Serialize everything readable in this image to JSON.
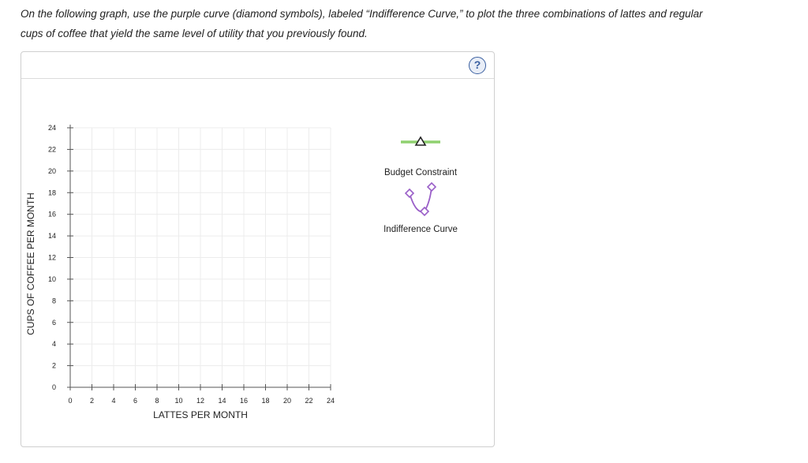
{
  "instructions": {
    "line1": "On the following graph, use the purple curve (diamond symbols), labeled “Indifference Curve,” to plot the three combinations of lattes and regular",
    "line2": "cups of coffee that yield the same level of utility that you previously found."
  },
  "help": {
    "label": "?"
  },
  "chart_data": {
    "type": "scatter",
    "title": "",
    "xlabel": "LATTES PER MONTH",
    "ylabel": "CUPS OF COFFEE PER MONTH",
    "xlim": [
      0,
      24
    ],
    "ylim": [
      0,
      24
    ],
    "xticks": [
      "0",
      "2",
      "4",
      "6",
      "8",
      "10",
      "12",
      "14",
      "16",
      "18",
      "20",
      "22",
      "24"
    ],
    "yticks": [
      "0",
      "2",
      "4",
      "6",
      "8",
      "10",
      "12",
      "14",
      "16",
      "18",
      "20",
      "22",
      "24"
    ],
    "grid": true,
    "legend_position": "right",
    "series": [],
    "legend": [
      {
        "name": "Budget Constraint",
        "color": "#8fd16f",
        "marker": "triangle"
      },
      {
        "name": "Indifference Curve",
        "color": "#9a5fc8",
        "marker": "diamond"
      }
    ]
  }
}
